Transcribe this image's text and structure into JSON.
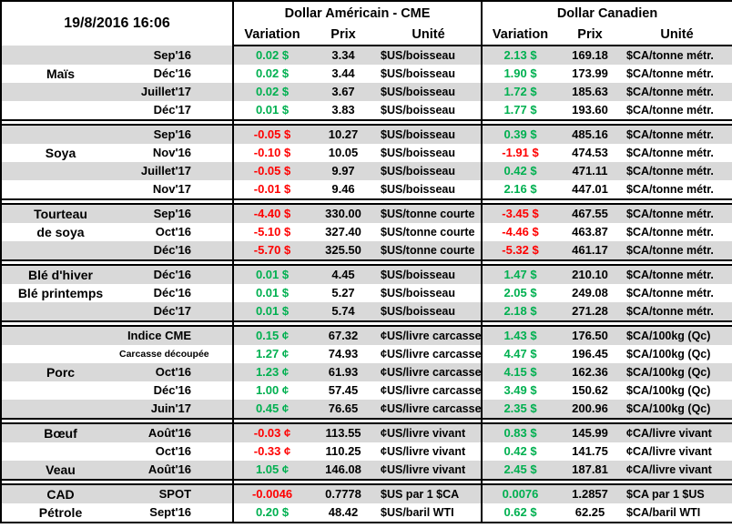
{
  "meta": {
    "timestamp": "19/8/2016 16:06"
  },
  "columns": {
    "us_group": "Dollar Américain - CME",
    "ca_group": "Dollar Canadien",
    "variation": "Variation",
    "prix": "Prix",
    "unite": "Unité"
  },
  "colors": {
    "positive": "#00B050",
    "negative": "#FF0000",
    "row_alt": "#D9D9D9",
    "border": "#000000"
  },
  "sections": [
    {
      "id": "mais",
      "rows": [
        {
          "name": "",
          "month": "Sep'16",
          "us_var": "0.02 $",
          "us_prix": "3.34",
          "us_unit": "$US/boisseau",
          "ca_var": "2.13 $",
          "ca_prix": "169.18",
          "ca_unit": "$CA/tonne métr."
        },
        {
          "name": "Maïs",
          "month": "Déc'16",
          "us_var": "0.02 $",
          "us_prix": "3.44",
          "us_unit": "$US/boisseau",
          "ca_var": "1.90 $",
          "ca_prix": "173.99",
          "ca_unit": "$CA/tonne métr."
        },
        {
          "name": "",
          "month": "Juillet'17",
          "us_var": "0.02 $",
          "us_prix": "3.67",
          "us_unit": "$US/boisseau",
          "ca_var": "1.72 $",
          "ca_prix": "185.63",
          "ca_unit": "$CA/tonne métr."
        },
        {
          "name": "",
          "month": "Déc'17",
          "us_var": "0.01 $",
          "us_prix": "3.83",
          "us_unit": "$US/boisseau",
          "ca_var": "1.77 $",
          "ca_prix": "193.60",
          "ca_unit": "$CA/tonne métr."
        }
      ]
    },
    {
      "id": "soya",
      "rows": [
        {
          "name": "",
          "month": "Sep'16",
          "us_var": "-0.05 $",
          "us_prix": "10.27",
          "us_unit": "$US/boisseau",
          "ca_var": "0.39 $",
          "ca_prix": "485.16",
          "ca_unit": "$CA/tonne métr."
        },
        {
          "name": "Soya",
          "month": "Nov'16",
          "us_var": "-0.10 $",
          "us_prix": "10.05",
          "us_unit": "$US/boisseau",
          "ca_var": "-1.91 $",
          "ca_prix": "474.53",
          "ca_unit": "$CA/tonne métr."
        },
        {
          "name": "",
          "month": "Juillet'17",
          "us_var": "-0.05 $",
          "us_prix": "9.97",
          "us_unit": "$US/boisseau",
          "ca_var": "0.42 $",
          "ca_prix": "471.11",
          "ca_unit": "$CA/tonne métr."
        },
        {
          "name": "",
          "month": "Nov'17",
          "us_var": "-0.01 $",
          "us_prix": "9.46",
          "us_unit": "$US/boisseau",
          "ca_var": "2.16 $",
          "ca_prix": "447.01",
          "ca_unit": "$CA/tonne métr."
        }
      ]
    },
    {
      "id": "tourteau-de-soya",
      "rows": [
        {
          "name": "Tourteau",
          "month": "Sep'16",
          "us_var": "-4.40 $",
          "us_prix": "330.00",
          "us_unit": "$US/tonne courte",
          "ca_var": "-3.45 $",
          "ca_prix": "467.55",
          "ca_unit": "$CA/tonne métr."
        },
        {
          "name": "de soya",
          "month": "Oct'16",
          "us_var": "-5.10 $",
          "us_prix": "327.40",
          "us_unit": "$US/tonne courte",
          "ca_var": "-4.46 $",
          "ca_prix": "463.87",
          "ca_unit": "$CA/tonne métr."
        },
        {
          "name": "",
          "month": "Déc'16",
          "us_var": "-5.70 $",
          "us_prix": "325.50",
          "us_unit": "$US/tonne courte",
          "ca_var": "-5.32 $",
          "ca_prix": "461.17",
          "ca_unit": "$CA/tonne métr."
        }
      ]
    },
    {
      "id": "ble",
      "rows": [
        {
          "name": "Blé d'hiver",
          "month": "Déc'16",
          "us_var": "0.01 $",
          "us_prix": "4.45",
          "us_unit": "$US/boisseau",
          "ca_var": "1.47 $",
          "ca_prix": "210.10",
          "ca_unit": "$CA/tonne métr."
        },
        {
          "name": "Blé printemps",
          "month": "Déc'16",
          "us_var": "0.01 $",
          "us_prix": "5.27",
          "us_unit": "$US/boisseau",
          "ca_var": "2.05 $",
          "ca_prix": "249.08",
          "ca_unit": "$CA/tonne métr."
        },
        {
          "name": "",
          "month": "Déc'17",
          "us_var": "0.01 $",
          "us_prix": "5.74",
          "us_unit": "$US/boisseau",
          "ca_var": "2.18 $",
          "ca_prix": "271.28",
          "ca_unit": "$CA/tonne métr."
        }
      ]
    },
    {
      "id": "porc",
      "rows": [
        {
          "name": "",
          "month": "Indice CME",
          "us_var": "0.15 ¢",
          "us_prix": "67.32",
          "us_unit": "¢US/livre carcasse",
          "ca_var": "1.43 $",
          "ca_prix": "176.50",
          "ca_unit": "$CA/100kg (Qc)"
        },
        {
          "name": "",
          "month": "Carcasse découpée",
          "small": true,
          "us_var": "1.27 ¢",
          "us_prix": "74.93",
          "us_unit": "¢US/livre carcasse",
          "ca_var": "4.47 $",
          "ca_prix": "196.45",
          "ca_unit": "$CA/100kg (Qc)"
        },
        {
          "name": "Porc",
          "month": "Oct'16",
          "us_var": "1.23 ¢",
          "us_prix": "61.93",
          "us_unit": "¢US/livre carcasse",
          "ca_var": "4.15 $",
          "ca_prix": "162.36",
          "ca_unit": "$CA/100kg (Qc)"
        },
        {
          "name": "",
          "month": "Déc'16",
          "us_var": "1.00 ¢",
          "us_prix": "57.45",
          "us_unit": "¢US/livre carcasse",
          "ca_var": "3.49 $",
          "ca_prix": "150.62",
          "ca_unit": "$CA/100kg (Qc)"
        },
        {
          "name": "",
          "month": "Juin'17",
          "us_var": "0.45 ¢",
          "us_prix": "76.65",
          "us_unit": "¢US/livre carcasse",
          "ca_var": "2.35 $",
          "ca_prix": "200.96",
          "ca_unit": "$CA/100kg (Qc)"
        }
      ]
    },
    {
      "id": "boeuf-veau",
      "rows": [
        {
          "name": "Bœuf",
          "month": "Août'16",
          "us_var": "-0.03 ¢",
          "us_prix": "113.55",
          "us_unit": "¢US/livre vivant",
          "ca_var": "0.83 $",
          "ca_prix": "145.99",
          "ca_unit": "¢CA/livre vivant"
        },
        {
          "name": "",
          "month": "Oct'16",
          "us_var": "-0.33 ¢",
          "us_prix": "110.25",
          "us_unit": "¢US/livre vivant",
          "ca_var": "0.42 $",
          "ca_prix": "141.75",
          "ca_unit": "¢CA/livre vivant"
        },
        {
          "name": "Veau",
          "month": "Août'16",
          "us_var": "1.05 ¢",
          "us_prix": "146.08",
          "us_unit": "¢US/livre vivant",
          "ca_var": "2.45 $",
          "ca_prix": "187.81",
          "ca_unit": "¢CA/livre vivant"
        }
      ]
    },
    {
      "id": "cad-petrole",
      "rows": [
        {
          "name": "CAD",
          "month": "SPOT",
          "us_var": "-0.0046",
          "us_prix": "0.7778",
          "us_unit": "$US par 1 $CA",
          "ca_var": "0.0076",
          "ca_prix": "1.2857",
          "ca_unit": "$CA par 1 $US"
        },
        {
          "name": "Pétrole",
          "month": "Sept'16",
          "us_var": "0.20 $",
          "us_prix": "48.42",
          "us_unit": "$US/baril WTI",
          "ca_var": "0.62 $",
          "ca_prix": "62.25",
          "ca_unit": "$CA/baril WTI"
        }
      ]
    }
  ]
}
